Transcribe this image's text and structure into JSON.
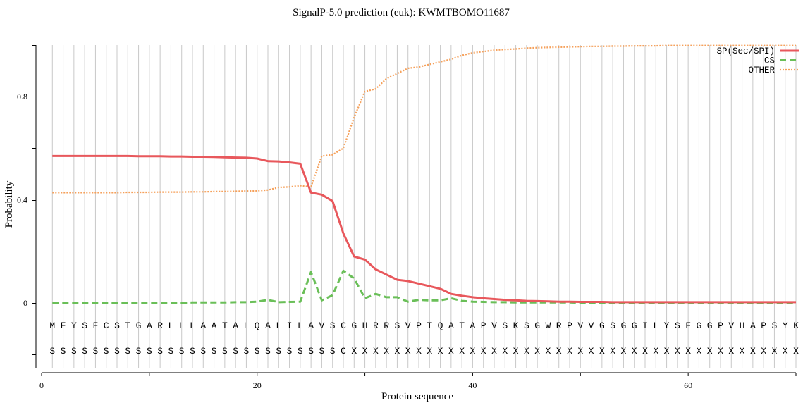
{
  "chart_data": {
    "type": "line",
    "title": "SignalP-5.0 prediction (euk):  KWMTBOMO11687",
    "xlabel": "Protein sequence",
    "ylabel": "Probability",
    "xlim": [
      0,
      70
    ],
    "ylim": [
      -0.25,
      1.0
    ],
    "x_ticks": [
      0,
      20,
      40,
      60
    ],
    "y_ticks": [
      0,
      0.4,
      0.8
    ],
    "y_tick_labels": [
      "0",
      "0.4",
      "0.8"
    ],
    "grid": "vertical lines at each residue",
    "legend_position": "top-right",
    "sequence": [
      "M",
      "F",
      "Y",
      "S",
      "F",
      "C",
      "S",
      "T",
      "G",
      "A",
      "R",
      "L",
      "L",
      "L",
      "A",
      "A",
      "T",
      "A",
      "L",
      "Q",
      "A",
      "L",
      "I",
      "L",
      "A",
      "V",
      "S",
      "C",
      "G",
      "H",
      "R",
      "R",
      "S",
      "V",
      "P",
      "T",
      "Q",
      "A",
      "T",
      "A",
      "P",
      "V",
      "S",
      "K",
      "S",
      "G",
      "W",
      "R",
      "P",
      "V",
      "V",
      "G",
      "S",
      "G",
      "G",
      "I",
      "L",
      "Y",
      "S",
      "F",
      "G",
      "G",
      "P",
      "V",
      "H",
      "A",
      "P",
      "S",
      "Y",
      "K"
    ],
    "annotation": [
      "S",
      "S",
      "S",
      "S",
      "S",
      "S",
      "S",
      "S",
      "S",
      "S",
      "S",
      "S",
      "S",
      "S",
      "S",
      "S",
      "S",
      "S",
      "S",
      "S",
      "S",
      "S",
      "S",
      "S",
      "S",
      "S",
      "S",
      "C",
      "X",
      "X",
      "X",
      "X",
      "X",
      "X",
      "X",
      "X",
      "X",
      "X",
      "X",
      "X",
      "X",
      "X",
      "X",
      "X",
      "X",
      "X",
      "X",
      "X",
      "X",
      "X",
      "X",
      "X",
      "X",
      "X",
      "X",
      "X",
      "X",
      "X",
      "X",
      "X",
      "X",
      "X",
      "X",
      "X",
      "X",
      "X",
      "X",
      "X",
      "X",
      "X"
    ],
    "series": [
      {
        "name": "SP(Sec/SPI)",
        "color": "#e8585c",
        "style": "solid",
        "values": [
          0.57,
          0.57,
          0.57,
          0.57,
          0.57,
          0.57,
          0.57,
          0.57,
          0.569,
          0.569,
          0.569,
          0.568,
          0.568,
          0.567,
          0.567,
          0.566,
          0.565,
          0.564,
          0.563,
          0.56,
          0.55,
          0.549,
          0.545,
          0.54,
          0.428,
          0.42,
          0.395,
          0.27,
          0.18,
          0.168,
          0.13,
          0.11,
          0.09,
          0.085,
          0.075,
          0.065,
          0.055,
          0.035,
          0.028,
          0.022,
          0.018,
          0.015,
          0.012,
          0.01,
          0.008,
          0.007,
          0.006,
          0.005,
          0.005,
          0.004,
          0.004,
          0.004,
          0.003,
          0.003,
          0.003,
          0.003,
          0.003,
          0.003,
          0.003,
          0.003,
          0.003,
          0.003,
          0.003,
          0.003,
          0.003,
          0.003,
          0.003,
          0.003,
          0.003,
          0.003
        ]
      },
      {
        "name": "CS",
        "color": "#6abf58",
        "style": "dashed",
        "values": [
          0.001,
          0.001,
          0.001,
          0.001,
          0.001,
          0.001,
          0.001,
          0.001,
          0.001,
          0.001,
          0.001,
          0.001,
          0.001,
          0.002,
          0.002,
          0.002,
          0.002,
          0.003,
          0.003,
          0.005,
          0.012,
          0.003,
          0.004,
          0.005,
          0.12,
          0.01,
          0.03,
          0.125,
          0.095,
          0.018,
          0.035,
          0.022,
          0.022,
          0.005,
          0.012,
          0.01,
          0.01,
          0.018,
          0.008,
          0.005,
          0.004,
          0.003,
          0.003,
          0.002,
          0.002,
          0.002,
          0.002,
          0.002,
          0.002,
          0.001,
          0.001,
          0.001,
          0.001,
          0.001,
          0.001,
          0.001,
          0.001,
          0.001,
          0.001,
          0.001,
          0.001,
          0.001,
          0.001,
          0.001,
          0.001,
          0.001,
          0.001,
          0.001,
          0.001,
          0.001
        ]
      },
      {
        "name": "OTHER",
        "color": "#f5a05a",
        "style": "dotted",
        "values": [
          0.428,
          0.428,
          0.428,
          0.428,
          0.428,
          0.428,
          0.428,
          0.429,
          0.429,
          0.429,
          0.43,
          0.43,
          0.43,
          0.431,
          0.431,
          0.432,
          0.432,
          0.433,
          0.434,
          0.435,
          0.438,
          0.448,
          0.45,
          0.455,
          0.45,
          0.57,
          0.575,
          0.6,
          0.72,
          0.82,
          0.83,
          0.87,
          0.89,
          0.91,
          0.915,
          0.925,
          0.935,
          0.945,
          0.96,
          0.97,
          0.975,
          0.98,
          0.983,
          0.985,
          0.988,
          0.99,
          0.991,
          0.992,
          0.993,
          0.994,
          0.995,
          0.995,
          0.996,
          0.996,
          0.997,
          0.997,
          0.997,
          0.998,
          0.998,
          0.998,
          0.998,
          0.998,
          0.998,
          0.998,
          0.998,
          0.998,
          0.998,
          0.998,
          0.998,
          0.998
        ]
      }
    ]
  }
}
